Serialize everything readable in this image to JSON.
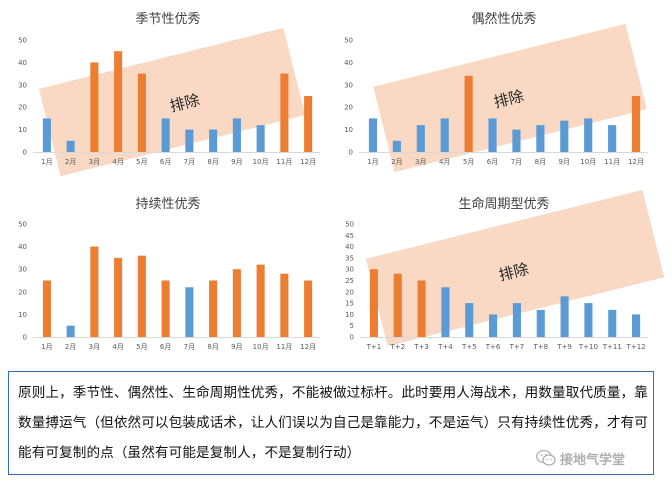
{
  "chart_data": [
    {
      "type": "bar",
      "title": "季节性优秀",
      "categories": [
        "1月",
        "2月",
        "3月",
        "4月",
        "5月",
        "6月",
        "7月",
        "8月",
        "9月",
        "10月",
        "11月",
        "12月"
      ],
      "values": [
        15,
        5,
        40,
        45,
        35,
        15,
        10,
        10,
        15,
        12,
        35,
        25
      ],
      "highlighted": [
        false,
        false,
        true,
        true,
        true,
        false,
        false,
        false,
        false,
        false,
        true,
        true
      ],
      "ylim": [
        0,
        50
      ],
      "yticks": [
        "0",
        "10",
        "20",
        "30",
        "40",
        "50"
      ],
      "overlay_label": "排除",
      "grid": false
    },
    {
      "type": "bar",
      "title": "偶然性优秀",
      "categories": [
        "1月",
        "2月",
        "3月",
        "4月",
        "5月",
        "6月",
        "7月",
        "8月",
        "9月",
        "10月",
        "11月",
        "12月"
      ],
      "values": [
        15,
        5,
        12,
        15,
        34,
        15,
        10,
        12,
        14,
        15,
        12,
        25
      ],
      "highlighted": [
        false,
        false,
        false,
        false,
        true,
        false,
        false,
        false,
        false,
        false,
        false,
        true
      ],
      "ylim": [
        0,
        50
      ],
      "yticks": [
        "0",
        "10",
        "20",
        "30",
        "40",
        "50"
      ],
      "overlay_label": "排除",
      "grid": false
    },
    {
      "type": "bar",
      "title": "持续性优秀",
      "categories": [
        "1月",
        "2月",
        "3月",
        "4月",
        "5月",
        "6月",
        "7月",
        "8月",
        "9月",
        "10月",
        "11月",
        "12月"
      ],
      "values": [
        25,
        5,
        40,
        35,
        36,
        25,
        22,
        25,
        30,
        32,
        28,
        25
      ],
      "highlighted": [
        true,
        false,
        true,
        true,
        true,
        true,
        false,
        true,
        true,
        true,
        true,
        true
      ],
      "ylim": [
        0,
        50
      ],
      "yticks": [
        "0",
        "10",
        "20",
        "30",
        "40",
        "50"
      ],
      "overlay_label": "",
      "grid": false
    },
    {
      "type": "bar",
      "title": "生命周期型优秀",
      "categories": [
        "T+1",
        "T+2",
        "T+3",
        "T+4",
        "T+5",
        "T+6",
        "T+7",
        "T+8",
        "T+9",
        "T+10",
        "T+11",
        "T+12"
      ],
      "values": [
        30,
        28,
        25,
        22,
        15,
        10,
        15,
        12,
        18,
        15,
        12,
        10
      ],
      "highlighted": [
        true,
        true,
        true,
        false,
        false,
        false,
        false,
        false,
        false,
        false,
        false,
        false
      ],
      "ylim": [
        0,
        50
      ],
      "yticks": [
        "0",
        "5",
        "10",
        "15",
        "20",
        "25",
        "30",
        "35",
        "40",
        "45",
        "50"
      ],
      "overlay_label": "排除",
      "grid": false
    }
  ],
  "colors": {
    "highlight": "#ed7d31",
    "normal": "#5b9bd5",
    "overlay": "#f8cbad",
    "axis": "#d9d9d9",
    "caption_border": "#2e6fb5"
  },
  "caption": {
    "text": "原则上，季节性、偶然性、生命周期性优秀，不能被做过标杆。此时要用人海战术，用数量取代质量，靠数量搏运气（但依然可以包装成话术，让人们误以为自己是靠能力，不是运气）只有持续性优秀，才有可能有可复制的点（虽然有可能是复制人，不是复制行动）"
  },
  "watermark": {
    "text": "接地气学堂",
    "icon": "wechat-icon"
  }
}
